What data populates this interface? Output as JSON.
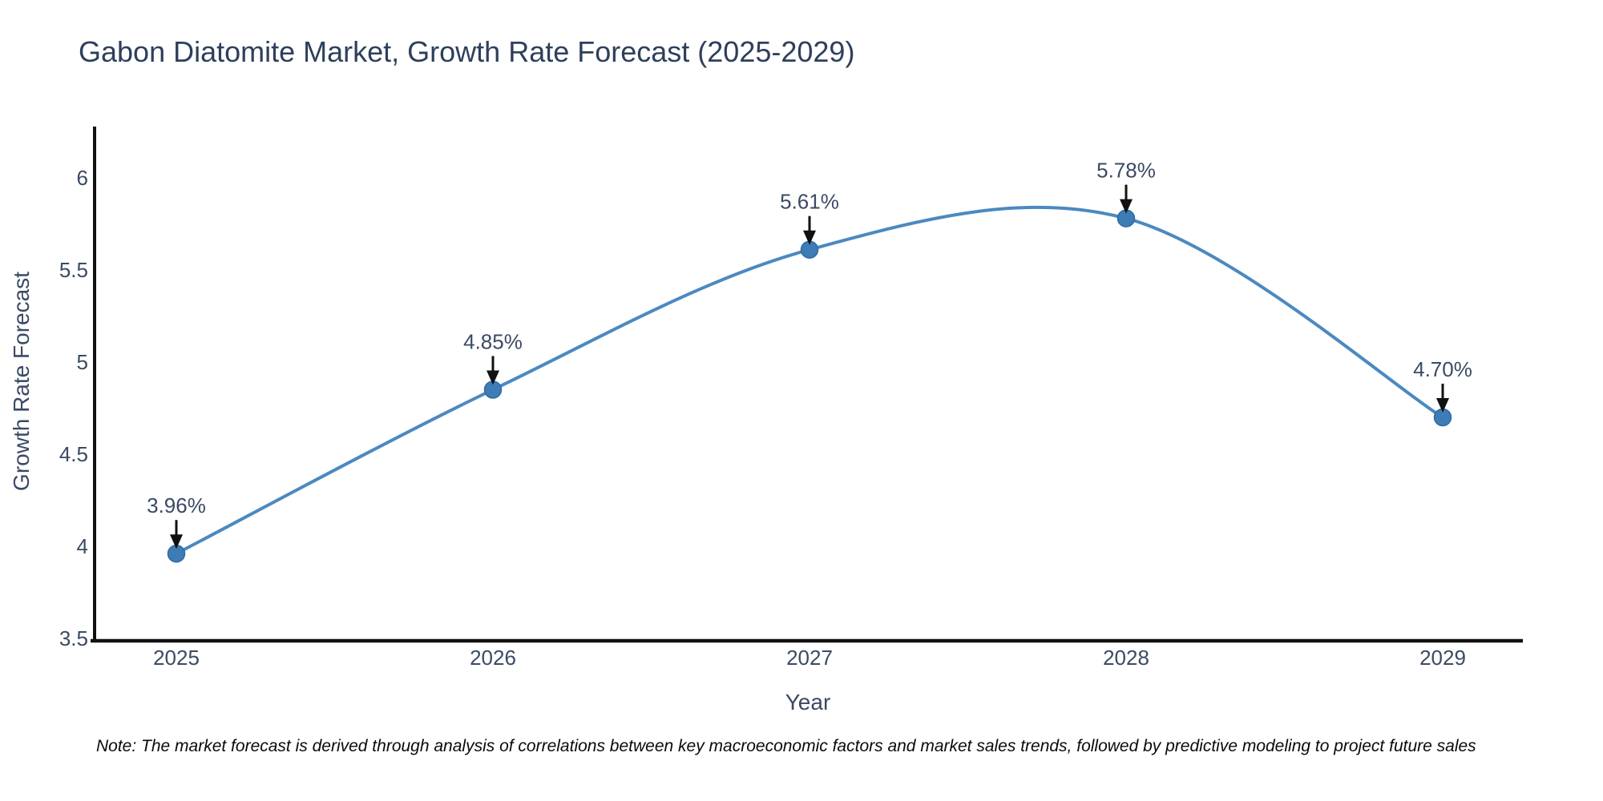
{
  "title": "Gabon Diatomite Market, Growth Rate Forecast (2025-2029)",
  "note": "Note: The market forecast is derived through analysis of correlations between key macroeconomic factors and market sales trends, followed by predictive modeling to project future sales",
  "chart_data": {
    "type": "line",
    "line_shape": "spline",
    "grid": false,
    "legend": "none",
    "title": "Gabon Diatomite Market, Growth Rate Forecast (2025-2029)",
    "xlabel": "Year",
    "ylabel": "Growth Rate Forecast",
    "x": [
      2025,
      2026,
      2027,
      2028,
      2029
    ],
    "series": [
      {
        "name": "Growth Rate Forecast",
        "values": [
          3.96,
          4.85,
          5.61,
          5.78,
          4.7
        ]
      }
    ],
    "point_labels": [
      "3.96%",
      "4.85%",
      "5.61%",
      "5.78%",
      "4.70%"
    ],
    "ytick_values": [
      3.5,
      4,
      4.5,
      5,
      5.5,
      6
    ],
    "ytick_labels": [
      "3.5",
      "4",
      "4.5",
      "5",
      "5.5",
      "6"
    ],
    "ylim": [
      3.5,
      6.28
    ],
    "colors": {
      "line": "#4b89c0",
      "marker": "#3e7cb6",
      "marker_outline": "#2e6ba4",
      "axis": "#111111",
      "tick_text": "#3b4a63",
      "title_text": "#2e3f5c",
      "annotation_text": "#2e3f5c",
      "arrow": "#111111",
      "note_text": "#0a0a0a",
      "background": "#ffffff"
    }
  }
}
